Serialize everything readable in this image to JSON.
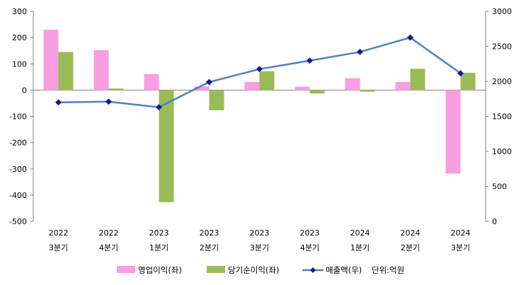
{
  "chart_data": {
    "type": "bar+line",
    "categories": [
      [
        "2022",
        "3분기"
      ],
      [
        "2022",
        "4분기"
      ],
      [
        "2023",
        "1분기"
      ],
      [
        "2023",
        "2분기"
      ],
      [
        "2023",
        "3분기"
      ],
      [
        "2023",
        "4분기"
      ],
      [
        "2024",
        "1분기"
      ],
      [
        "2024",
        "2분기"
      ],
      [
        "2024",
        "3분기"
      ]
    ],
    "series": [
      {
        "name": "영업이익(좌)",
        "type": "bar",
        "axis": "left",
        "color": "#f79fe0",
        "values": [
          230,
          152,
          61,
          14,
          31,
          13,
          45,
          31,
          -318
        ]
      },
      {
        "name": "당기순이익(좌)",
        "type": "bar",
        "axis": "left",
        "color": "#9bbb59",
        "values": [
          145,
          6,
          -427,
          -77,
          72,
          -13,
          -6,
          81,
          66
        ]
      },
      {
        "name": "매출액(우)",
        "type": "line",
        "axis": "right",
        "color": "#4f81bd",
        "marker_color": "#1a1a8c",
        "values": [
          1700,
          1710,
          1630,
          1990,
          2175,
          2295,
          2420,
          2625,
          2115
        ]
      }
    ],
    "y_left": {
      "min": -500,
      "max": 300,
      "ticks": [
        300,
        200,
        100,
        0,
        -100,
        -200,
        -300,
        -400,
        -500
      ]
    },
    "y_right": {
      "min": 0,
      "max": 3000,
      "ticks": [
        3000,
        2500,
        2000,
        1500,
        1000,
        500,
        0
      ]
    },
    "unit_note": "단위:억원",
    "legend_position": "bottom",
    "grid": false
  }
}
